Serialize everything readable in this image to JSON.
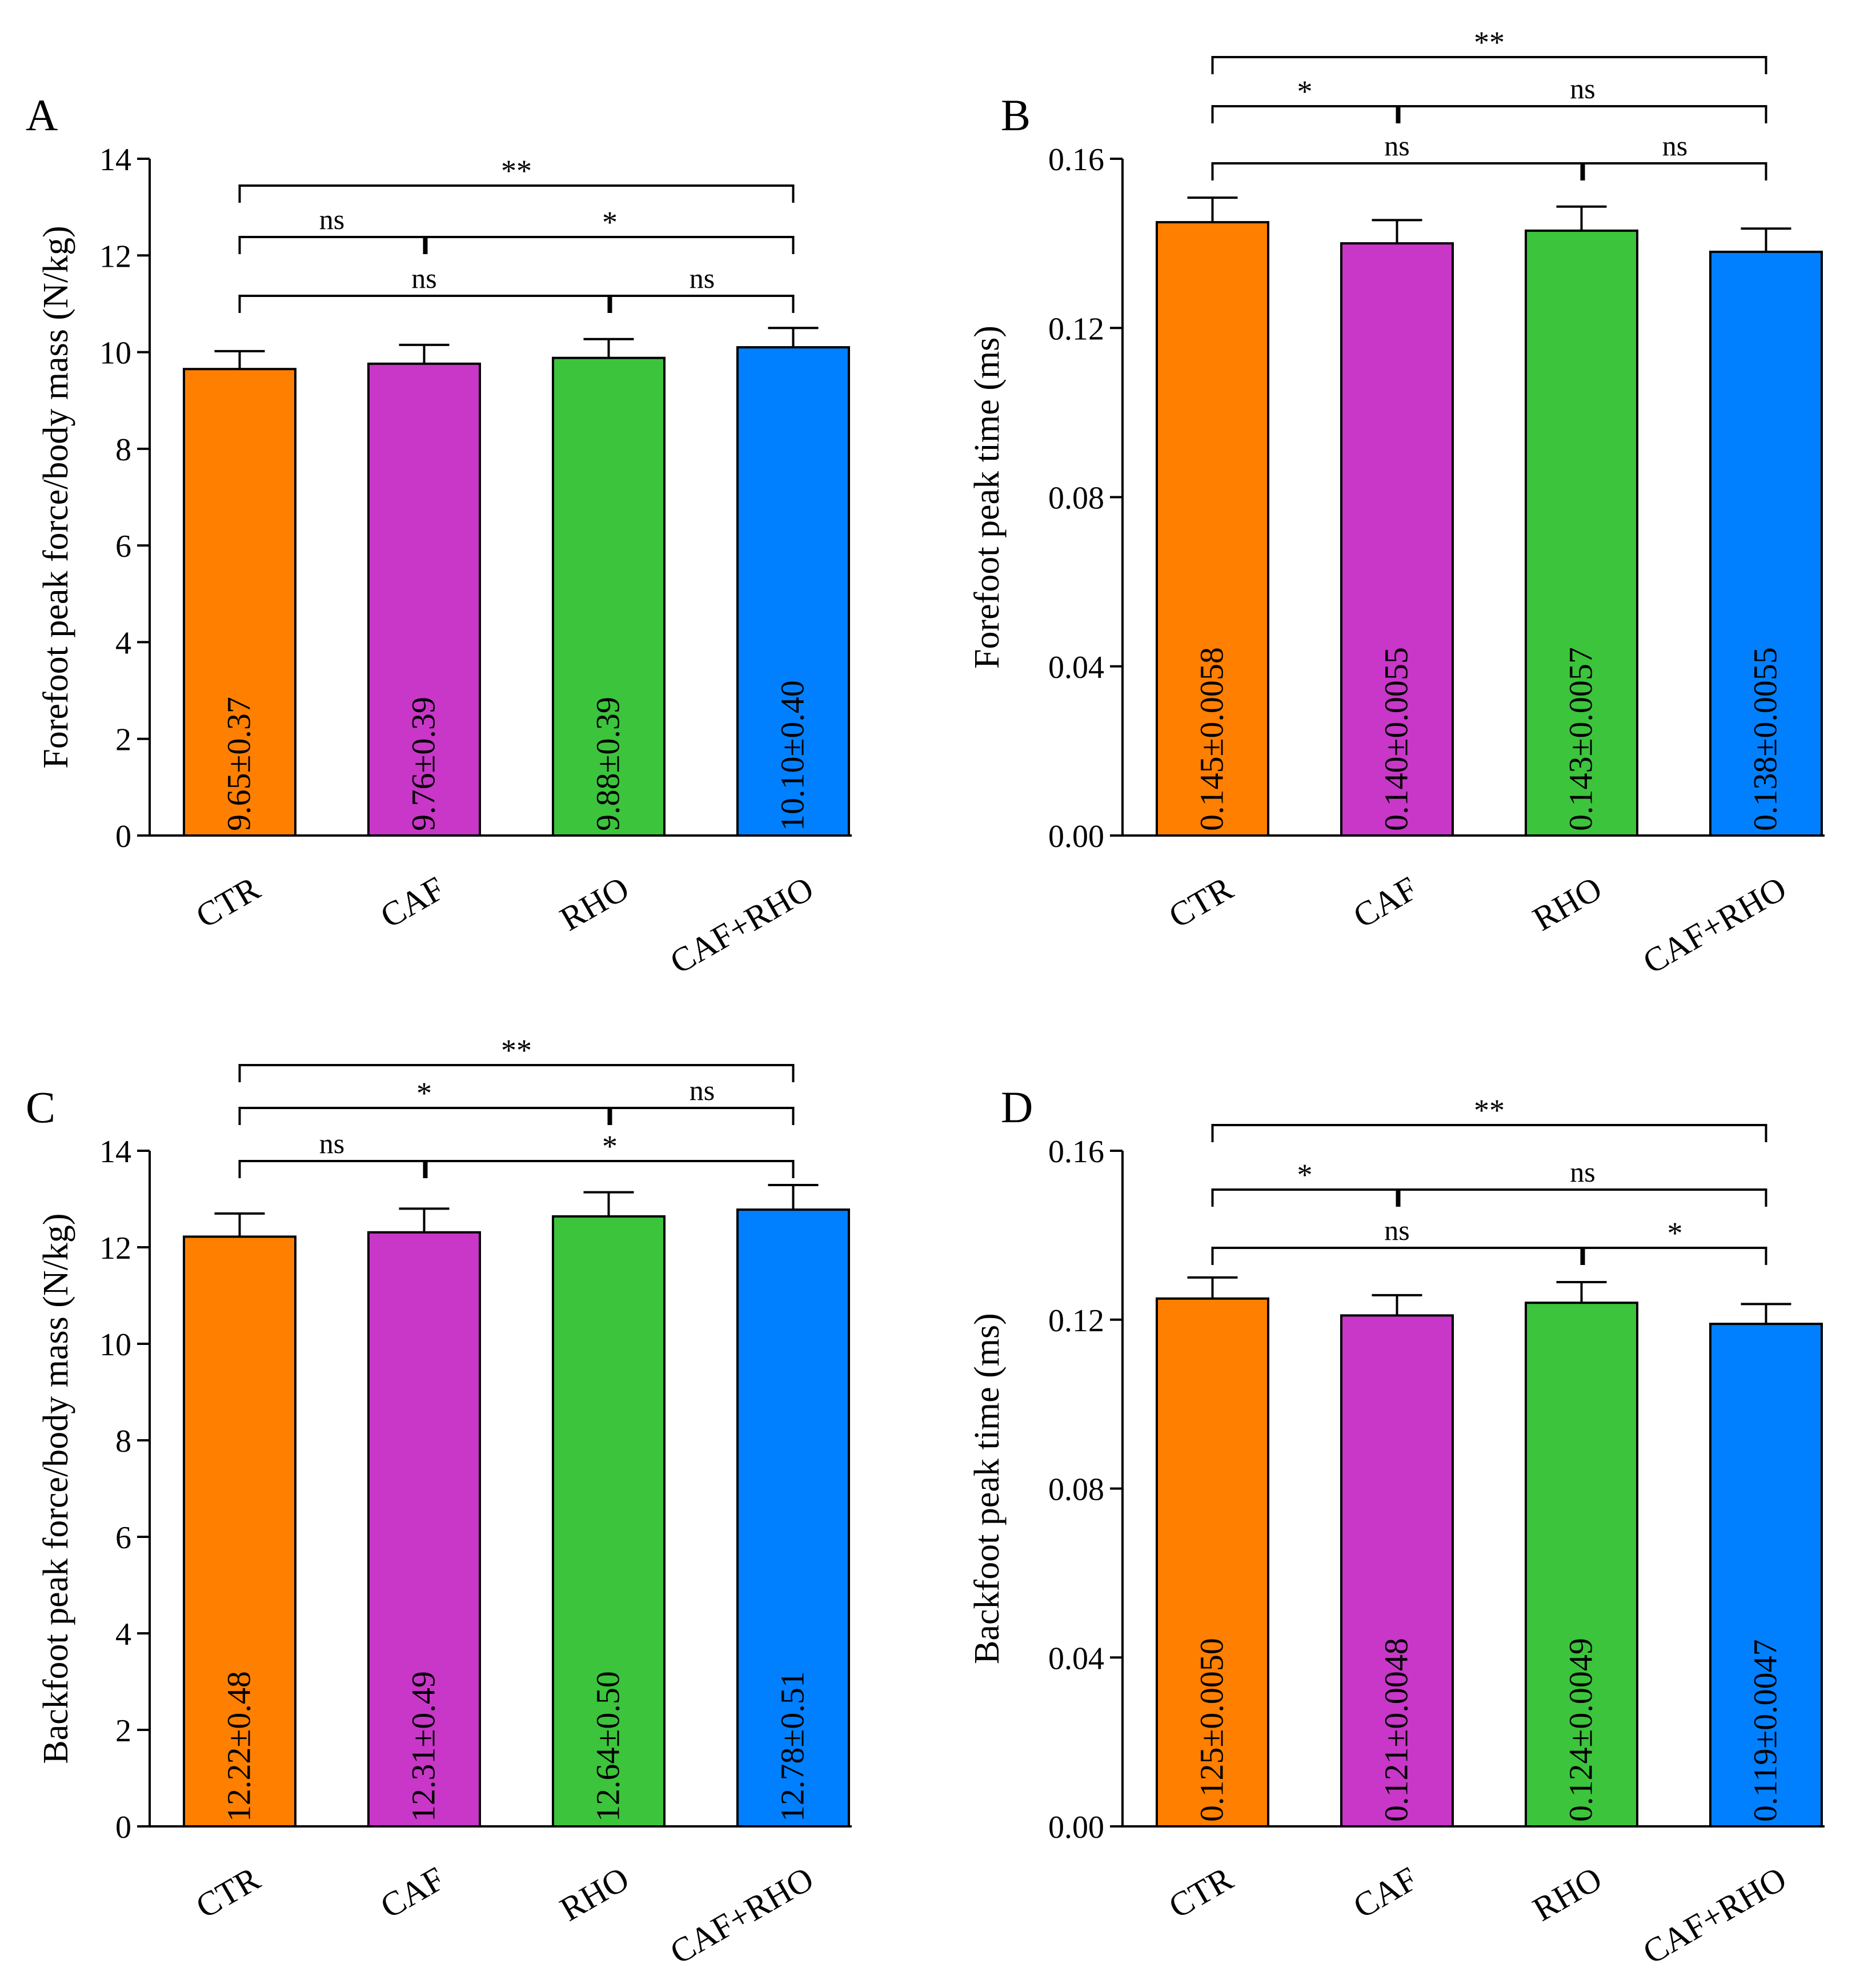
{
  "chart_data": [
    {
      "panel": "A",
      "type": "bar",
      "ylabel": "Forefoot peak force/body mass (N/kg)",
      "ylim": [
        0,
        14
      ],
      "yticks": [
        "0",
        "2",
        "4",
        "6",
        "8",
        "10",
        "12",
        "14"
      ],
      "categories": [
        "CTR",
        "CAF",
        "RHO",
        "CAF+RHO"
      ],
      "values": [
        9.65,
        9.76,
        9.88,
        10.1
      ],
      "errors": [
        0.37,
        0.39,
        0.39,
        0.4
      ],
      "bar_labels": [
        "9.65±0.37",
        "9.76±0.39",
        "9.88±0.39",
        "10.10±0.40"
      ],
      "colors": [
        "#ff7f00",
        "#c837c8",
        "#3cc43c",
        "#0080ff"
      ],
      "significance": [
        {
          "from": 0,
          "to": 3,
          "label": "**",
          "level": 3
        },
        {
          "from": 0,
          "to": 1,
          "label": "ns",
          "level": 2
        },
        {
          "from": 1,
          "to": 3,
          "label": "*",
          "level": 2
        },
        {
          "from": 0,
          "to": 2,
          "label": "ns",
          "level": 1
        },
        {
          "from": 2,
          "to": 3,
          "label": "ns",
          "level": 1
        }
      ]
    },
    {
      "panel": "B",
      "type": "bar",
      "ylabel": "Forefoot peak time (ms)",
      "ylim": [
        0,
        0.16
      ],
      "yticks": [
        "0.00",
        "0.04",
        "0.08",
        "0.12",
        "0.16"
      ],
      "categories": [
        "CTR",
        "CAF",
        "RHO",
        "CAF+RHO"
      ],
      "values": [
        0.145,
        0.14,
        0.143,
        0.138
      ],
      "errors": [
        0.0058,
        0.0055,
        0.0057,
        0.0055
      ],
      "bar_labels": [
        "0.145±0.0058",
        "0.140±0.0055",
        "0.143±0.0057",
        "0.138±0.0055"
      ],
      "colors": [
        "#ff7f00",
        "#c837c8",
        "#3cc43c",
        "#0080ff"
      ],
      "significance": [
        {
          "from": 0,
          "to": 3,
          "label": "**",
          "level": 3
        },
        {
          "from": 0,
          "to": 1,
          "label": "*",
          "level": 2
        },
        {
          "from": 1,
          "to": 3,
          "label": "ns",
          "level": 2
        },
        {
          "from": 0,
          "to": 2,
          "label": "ns",
          "level": 1
        },
        {
          "from": 2,
          "to": 3,
          "label": "ns",
          "level": 1
        }
      ]
    },
    {
      "panel": "C",
      "type": "bar",
      "ylabel": "Backfoot peak force/body mass (N/kg)",
      "ylim": [
        0,
        14
      ],
      "yticks": [
        "0",
        "2",
        "4",
        "6",
        "8",
        "10",
        "12",
        "14"
      ],
      "categories": [
        "CTR",
        "CAF",
        "RHO",
        "CAF+RHO"
      ],
      "values": [
        12.22,
        12.31,
        12.64,
        12.78
      ],
      "errors": [
        0.48,
        0.49,
        0.5,
        0.51
      ],
      "bar_labels": [
        "12.22±0.48",
        "12.31±0.49",
        "12.64±0.50",
        "12.78±0.51"
      ],
      "colors": [
        "#ff7f00",
        "#c837c8",
        "#3cc43c",
        "#0080ff"
      ],
      "significance": [
        {
          "from": 0,
          "to": 3,
          "label": "**",
          "level": 3
        },
        {
          "from": 0,
          "to": 2,
          "label": "*",
          "level": 2
        },
        {
          "from": 2,
          "to": 3,
          "label": "ns",
          "level": 2
        },
        {
          "from": 0,
          "to": 1,
          "label": "ns",
          "level": 1
        },
        {
          "from": 1,
          "to": 3,
          "label": "*",
          "level": 1
        }
      ]
    },
    {
      "panel": "D",
      "type": "bar",
      "ylabel": "Backfoot peak time (ms)",
      "ylim": [
        0,
        0.16
      ],
      "yticks": [
        "0.00",
        "0.04",
        "0.08",
        "0.12",
        "0.16"
      ],
      "categories": [
        "CTR",
        "CAF",
        "RHO",
        "CAF+RHO"
      ],
      "values": [
        0.125,
        0.121,
        0.124,
        0.119
      ],
      "errors": [
        0.005,
        0.0048,
        0.0049,
        0.0047
      ],
      "bar_labels": [
        "0.125±0.0050",
        "0.121±0.0048",
        "0.124±0.0049",
        "0.119±0.0047"
      ],
      "colors": [
        "#ff7f00",
        "#c837c8",
        "#3cc43c",
        "#0080ff"
      ],
      "significance": [
        {
          "from": 0,
          "to": 3,
          "label": "**",
          "level": 3
        },
        {
          "from": 0,
          "to": 1,
          "label": "*",
          "level": 2
        },
        {
          "from": 1,
          "to": 3,
          "label": "ns",
          "level": 2
        },
        {
          "from": 0,
          "to": 2,
          "label": "ns",
          "level": 1
        },
        {
          "from": 2,
          "to": 3,
          "label": "*",
          "level": 1
        }
      ]
    }
  ]
}
